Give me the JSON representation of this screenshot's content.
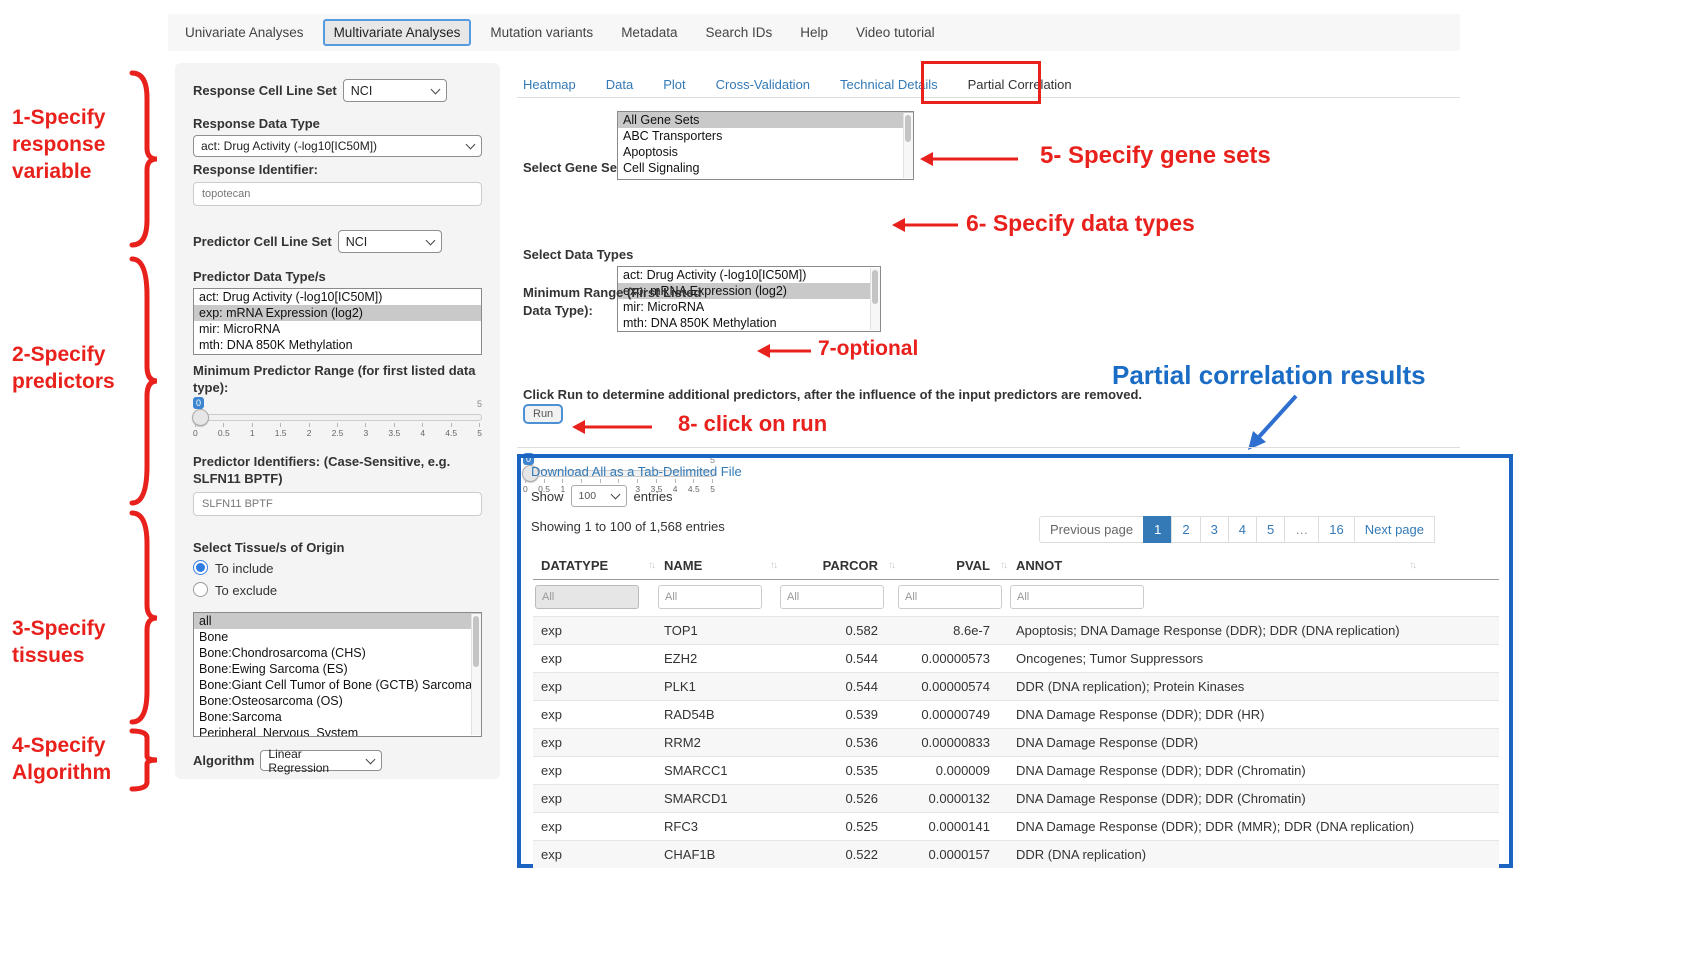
{
  "colors": {
    "annotation_red": "#e8211d",
    "heading_blue": "#1a6cc4",
    "link_blue": "#337ab7",
    "results_border_blue": "#1b64c1",
    "selected_item_gray": "#c9c9c9",
    "active_page_blue": "#337ab7"
  },
  "nav": {
    "tabs": [
      {
        "label": "Univariate Analyses",
        "active": false
      },
      {
        "label": "Multivariate Analyses",
        "active": true
      },
      {
        "label": "Mutation variants",
        "active": false
      },
      {
        "label": "Metadata",
        "active": false
      },
      {
        "label": "Search IDs",
        "active": false
      },
      {
        "label": "Help",
        "active": false
      },
      {
        "label": "Video tutorial",
        "active": false
      }
    ]
  },
  "annotations": {
    "step1": "1-Specify response variable",
    "step2": "2-Specify predictors",
    "step3": "3-Specify tissues",
    "step4": "4-Specify Algorithm",
    "step5": "5- Specify gene sets",
    "step6": "6- Specify data types",
    "step7": "7-optional",
    "step8": "8- click on run",
    "results_heading": "Partial correlation results"
  },
  "sidebar": {
    "response_cell_line_set": {
      "label": "Response Cell Line Set",
      "value": "NCI"
    },
    "response_data_type": {
      "label": "Response Data Type",
      "value": "act: Drug Activity (-log10[IC50M])"
    },
    "response_identifier": {
      "label": "Response Identifier:",
      "value": "topotecan"
    },
    "predictor_cell_line_set": {
      "label": "Predictor Cell Line Set",
      "value": "NCI"
    },
    "predictor_data_types": {
      "label": "Predictor Data Type/s",
      "options": [
        {
          "label": "act: Drug Activity (-log10[IC50M])",
          "selected": false
        },
        {
          "label": "exp: mRNA Expression (log2)",
          "selected": true
        },
        {
          "label": "mir: MicroRNA",
          "selected": false
        },
        {
          "label": "mth: DNA 850K Methylation",
          "selected": false
        }
      ]
    },
    "min_predictor_range": {
      "label": "Minimum Predictor Range (for first listed data type):",
      "value": "0",
      "max_label": "5",
      "ticks": [
        "0",
        "0.5",
        "1",
        "1.5",
        "2",
        "2.5",
        "3",
        "3.5",
        "4",
        "4.5",
        "5"
      ]
    },
    "predictor_identifiers": {
      "label": "Predictor Identifiers: (Case-Sensitive, e.g. SLFN11 BPTF)",
      "value": "SLFN11 BPTF"
    },
    "tissues": {
      "label": "Select Tissue/s of Origin",
      "radio_include": {
        "label": "To include",
        "checked": true
      },
      "radio_exclude": {
        "label": "To exclude",
        "checked": false
      },
      "options": [
        {
          "label": "all",
          "selected": true
        },
        {
          "label": "Bone",
          "selected": false
        },
        {
          "label": "Bone:Chondrosarcoma (CHS)",
          "selected": false
        },
        {
          "label": "Bone:Ewing Sarcoma (ES)",
          "selected": false
        },
        {
          "label": "Bone:Giant Cell Tumor of Bone (GCTB) Sarcoma",
          "selected": false
        },
        {
          "label": "Bone:Osteosarcoma (OS)",
          "selected": false
        },
        {
          "label": "Bone:Sarcoma",
          "selected": false
        },
        {
          "label": "Peripheral_Nervous_System",
          "selected": false
        }
      ]
    },
    "algorithm": {
      "label": "Algorithm",
      "value": "Linear Regression"
    }
  },
  "main": {
    "tabs": [
      {
        "label": "Heatmap",
        "active": false
      },
      {
        "label": "Data",
        "active": false
      },
      {
        "label": "Plot",
        "active": false
      },
      {
        "label": "Cross-Validation",
        "active": false
      },
      {
        "label": "Technical Details",
        "active": false
      },
      {
        "label": "Partial Correlation",
        "active": true
      }
    ],
    "gene_sets": {
      "label": "Select Gene Sets",
      "options": [
        {
          "label": "All Gene Sets",
          "selected": true
        },
        {
          "label": "ABC Transporters",
          "selected": false
        },
        {
          "label": "Apoptosis",
          "selected": false
        },
        {
          "label": "Cell Signaling",
          "selected": false
        }
      ]
    },
    "data_types": {
      "label": "Select Data Types",
      "options": [
        {
          "label": "act: Drug Activity (-log10[IC50M])",
          "selected": false
        },
        {
          "label": "exp: mRNA Expression (log2)",
          "selected": true
        },
        {
          "label": "mir: MicroRNA",
          "selected": false
        },
        {
          "label": "mth: DNA 850K Methylation",
          "selected": false
        }
      ]
    },
    "min_range": {
      "label_line1": "Minimum Range (First Listed",
      "label_line2": "Data Type):",
      "value": "0",
      "max_label": "5",
      "ticks": [
        "0",
        "0.5",
        "1",
        "1.5",
        "2",
        "2.5",
        "3",
        "3.5",
        "4",
        "4.5",
        "5"
      ]
    },
    "run": {
      "instruction": "Click Run to determine additional predictors, after the influence of the input predictors are removed.",
      "button_label": "Run"
    }
  },
  "results": {
    "download_link": "Download All as a Tab-Delimited File",
    "show_label": "Show",
    "page_size": "100",
    "entries_label": "entries",
    "showing_text": "Showing 1 to 100 of 1,568 entries",
    "pagination": {
      "prev": "Previous page",
      "pages": [
        "1",
        "2",
        "3",
        "4",
        "5",
        "…",
        "16"
      ],
      "active": "1",
      "next": "Next page"
    },
    "table": {
      "columns": [
        "DATATYPE",
        "NAME",
        "PARCOR",
        "PVAL",
        "ANNOT"
      ],
      "filter_placeholder": "All",
      "rows": [
        [
          "exp",
          "TOP1",
          "0.582",
          "8.6e-7",
          "Apoptosis; DNA Damage Response (DDR); DDR (DNA replication)"
        ],
        [
          "exp",
          "EZH2",
          "0.544",
          "0.00000573",
          "Oncogenes; Tumor Suppressors"
        ],
        [
          "exp",
          "PLK1",
          "0.544",
          "0.00000574",
          "DDR (DNA replication); Protein Kinases"
        ],
        [
          "exp",
          "RAD54B",
          "0.539",
          "0.00000749",
          "DNA Damage Response (DDR); DDR (HR)"
        ],
        [
          "exp",
          "RRM2",
          "0.536",
          "0.00000833",
          "DNA Damage Response (DDR)"
        ],
        [
          "exp",
          "SMARCC1",
          "0.535",
          "0.000009",
          "DNA Damage Response (DDR); DDR (Chromatin)"
        ],
        [
          "exp",
          "SMARCD1",
          "0.526",
          "0.0000132",
          "DNA Damage Response (DDR); DDR (Chromatin)"
        ],
        [
          "exp",
          "RFC3",
          "0.525",
          "0.0000141",
          "DNA Damage Response (DDR); DDR (MMR); DDR (DNA replication)"
        ],
        [
          "exp",
          "CHAF1B",
          "0.522",
          "0.0000157",
          "DDR (DNA replication)"
        ]
      ]
    }
  }
}
